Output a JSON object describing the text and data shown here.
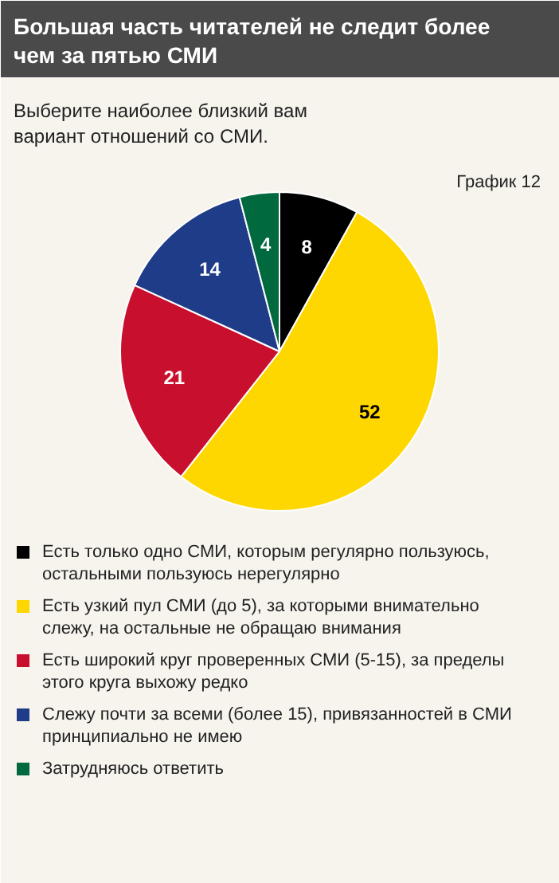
{
  "chart_data": {
    "type": "pie",
    "title": "Большая часть читателей не следит более чем за пятью СМИ",
    "subtitle": "Выберите наиболее близкий вам вариант отношений со СМИ.",
    "annotations": [
      "График 12"
    ],
    "categories": [
      "Есть только одно СМИ, которым регулярно пользуюсь, остальными пользуюсь нерегулярно",
      "Есть узкий пул СМИ (до 5), за которыми внимательно слежу, на остальные не обращаю внимания",
      "Есть широкий круг проверенных СМИ (5-15), за пределы этого круга выхожу редко",
      "Слежу почти за всеми (более 15), привязанностей в СМИ принципиально не имею",
      "Затрудняюсь ответить"
    ],
    "values": [
      8,
      52,
      21,
      14,
      4
    ],
    "colors": [
      "#000000",
      "#ffd700",
      "#c8102e",
      "#1f3c88",
      "#00693e"
    ],
    "data_labels": true,
    "legend": "bottom"
  }
}
